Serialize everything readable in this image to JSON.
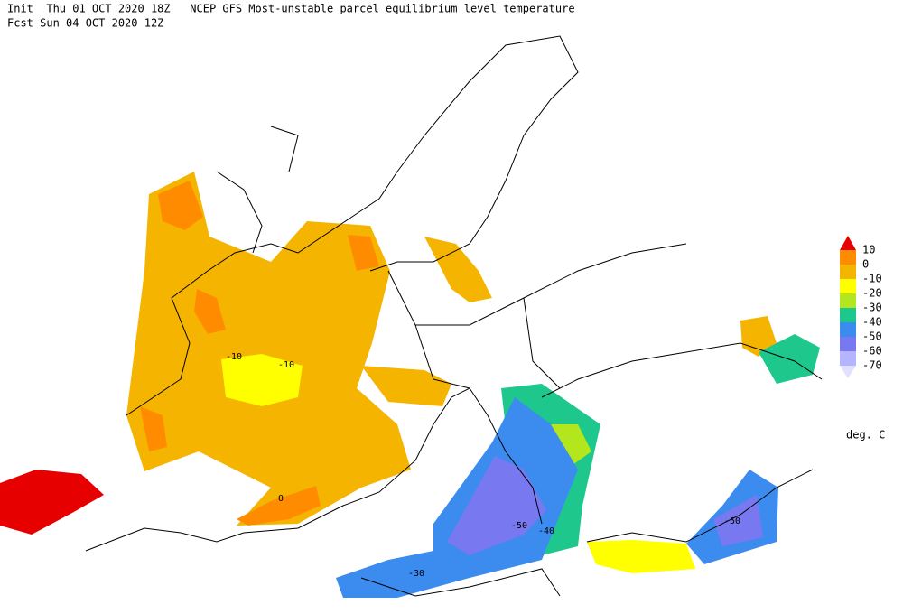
{
  "header": {
    "line1": "Init  Thu 01 OCT 2020 18Z   NCEP GFS Most-unstable parcel equilibrium level temperature",
    "line2": "Fcst Sun 04 OCT 2020 12Z"
  },
  "legend": {
    "levels": [
      10,
      0,
      -10,
      -20,
      -30,
      -40,
      -50,
      -60,
      -70
    ],
    "colors": [
      "#e60000",
      "#ff8c00",
      "#f5b400",
      "#ffff00",
      "#b4e61e",
      "#1ec88c",
      "#3c8cf0",
      "#7878f0",
      "#b4b4ff",
      "#e1e1ff"
    ],
    "units": "deg. C"
  },
  "contour_labels": [
    "-10",
    "-10",
    "0",
    "-30",
    "-50",
    "-40",
    "-50"
  ]
}
